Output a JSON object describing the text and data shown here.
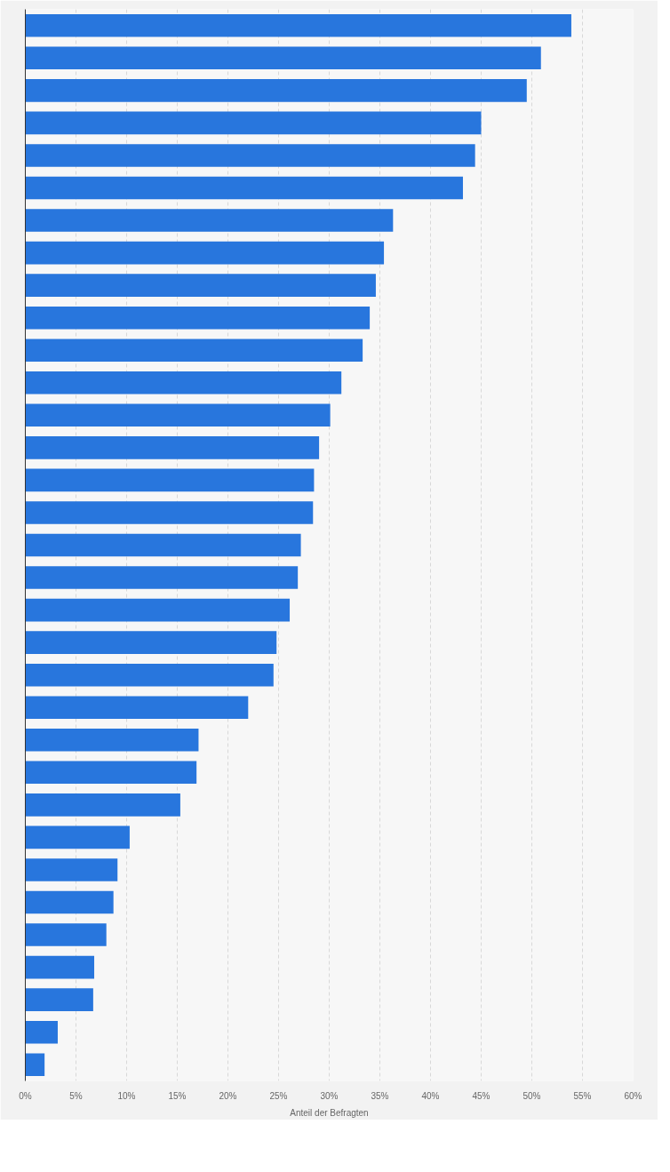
{
  "chart_data": {
    "type": "bar",
    "orientation": "horizontal",
    "xlabel": "Anteil der Befragten",
    "categories": [
      null,
      null,
      null,
      null,
      null,
      null,
      null,
      null,
      null,
      null,
      null,
      null,
      null,
      null,
      null,
      null,
      null,
      null,
      null,
      null,
      null,
      null,
      null,
      null,
      null,
      null,
      null,
      null,
      null,
      null,
      null,
      null,
      null
    ],
    "values": [
      53.9,
      50.9,
      49.5,
      45.0,
      44.4,
      43.2,
      36.3,
      35.4,
      34.6,
      34.0,
      33.3,
      31.2,
      30.1,
      29.0,
      28.5,
      28.4,
      27.2,
      26.9,
      26.1,
      24.8,
      24.5,
      22.0,
      17.1,
      16.9,
      15.3,
      10.3,
      9.1,
      8.7,
      8.0,
      6.8,
      6.7,
      3.2,
      1.9
    ],
    "color": "#2876dd",
    "xlim": [
      0,
      60
    ],
    "xticks": [
      {
        "value": 0,
        "label": "0%"
      },
      {
        "value": 5,
        "label": "5%"
      },
      {
        "value": 10,
        "label": "10%"
      },
      {
        "value": 15,
        "label": "15%"
      },
      {
        "value": 20,
        "label": "20%"
      },
      {
        "value": 25,
        "label": "25%"
      },
      {
        "value": 30,
        "label": "30%"
      },
      {
        "value": 35,
        "label": "35%"
      },
      {
        "value": 40,
        "label": "40%"
      },
      {
        "value": 45,
        "label": "45%"
      },
      {
        "value": 50,
        "label": "50%"
      },
      {
        "value": 55,
        "label": "55%"
      },
      {
        "value": 60,
        "label": "60%"
      }
    ],
    "grid": "x",
    "tick_labels": "x"
  }
}
